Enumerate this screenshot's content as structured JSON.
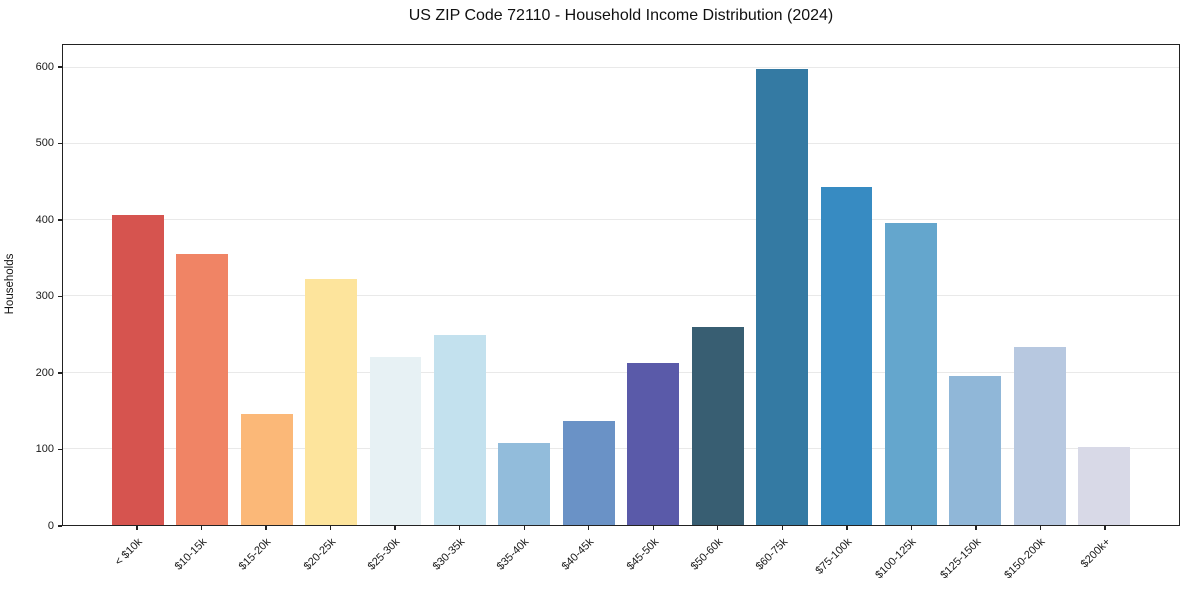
{
  "chart_data": {
    "type": "bar",
    "title": "US ZIP Code 72110 - Household Income Distribution (2024)",
    "xlabel": "",
    "ylabel": "Households",
    "categories": [
      "< $10k",
      "$10-15k",
      "$15-20k",
      "$20-25k",
      "$25-30k",
      "$30-35k",
      "$35-40k",
      "$40-45k",
      "$45-50k",
      "$50-60k",
      "$60-75k",
      "$75-100k",
      "$100-125k",
      "$125-150k",
      "$150-200k",
      "$200k+"
    ],
    "values": [
      407,
      356,
      146,
      323,
      221,
      250,
      107,
      137,
      212,
      260,
      599,
      443,
      396,
      195,
      234,
      102
    ],
    "bar_colors": [
      "#d6544f",
      "#f08465",
      "#fbb878",
      "#fde49c",
      "#e7f1f4",
      "#c3e1ee",
      "#92bcdb",
      "#6a92c6",
      "#5a5aa9",
      "#385e72",
      "#347aa3",
      "#378bc2",
      "#64a6cd",
      "#90b7d8",
      "#b7c8e0",
      "#d8d9e7"
    ],
    "ylim": [
      0,
      630
    ],
    "yticks": [
      0,
      100,
      200,
      300,
      400,
      500,
      600
    ],
    "grid": "horizontal-major-only",
    "legend_position": "none",
    "grid_color": "#e9e9e9",
    "spine_color": "#222222",
    "text_color": "#1a1a1a"
  }
}
